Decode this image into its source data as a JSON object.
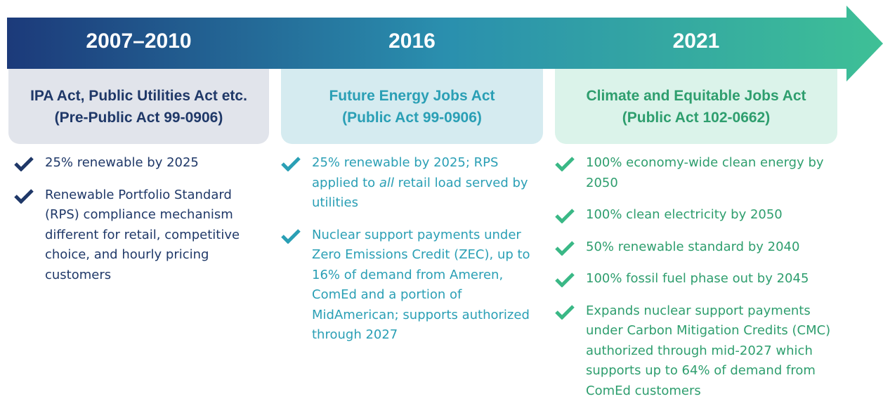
{
  "columns": [
    {
      "period": "2007–2010",
      "title": [
        "IPA Act, Public Utilities Act etc.",
        "(Pre-Public Act 99-0906)"
      ],
      "items": [
        {
          "text": "25% renewable by 2025"
        },
        {
          "text": "Renewable Portfolio Standard (RPS) compliance mechanism different for retail, competitive choice, and hourly pricing customers"
        }
      ]
    },
    {
      "period": "2016",
      "title": [
        "Future Energy Jobs Act",
        "(Public Act 99-0906)"
      ],
      "items": [
        {
          "text": "25% renewable by 2025; RPS applied to ",
          "emphasis": "all",
          "after": " retail load served by utilities"
        },
        {
          "text": "Nuclear support payments under Zero Emissions Credit (ZEC), up to 16% of demand from Ameren, ComEd and a portion of MidAmerican; supports authorized through 2027"
        }
      ]
    },
    {
      "period": "2021",
      "title": [
        "Climate and Equitable Jobs Act",
        "(Public Act 102-0662)"
      ],
      "items": [
        {
          "text": "100% economy-wide clean energy by 2050"
        },
        {
          "text": "100% clean electricity by 2050"
        },
        {
          "text": "50% renewable standard by 2040"
        },
        {
          "text": "100% fossil fuel phase out by 2045"
        },
        {
          "text": "Expands nuclear support payments under Carbon Mitigation Credits (CMC) authorized through mid-2027 which supports up to 64% of demand from ComEd customers"
        }
      ]
    }
  ]
}
